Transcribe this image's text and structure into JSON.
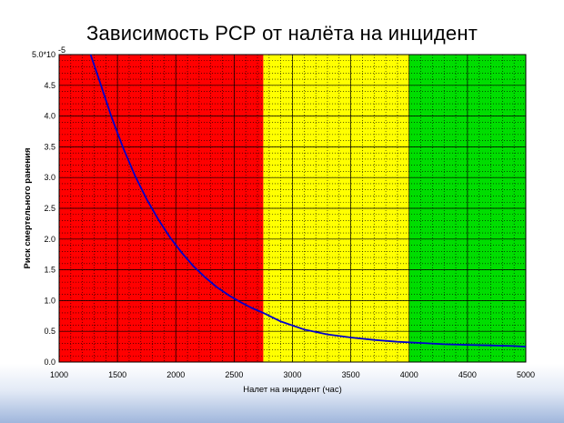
{
  "title": "Зависимость РСР от налёта на инцидент",
  "chart_data": {
    "type": "line",
    "title": "Зависимость РСР от налёта на инцидент",
    "xlabel": "Налет на инцидент (час)",
    "ylabel": "Риск смертельного ранения",
    "y_multiplier_label": "×10⁻⁵",
    "xlim": [
      1000,
      5000
    ],
    "ylim": [
      0.0,
      5.0
    ],
    "x_ticks": [
      1000,
      1500,
      2000,
      2500,
      3000,
      3500,
      4000,
      4500,
      5000
    ],
    "x_tick_labels": [
      "1000",
      "1500",
      "2000",
      "2500",
      "3000",
      "3500",
      "4000",
      "4500",
      "5000"
    ],
    "y_ticks": [
      0.0,
      0.5,
      1.0,
      1.5,
      2.0,
      2.5,
      3.0,
      3.5,
      4.0,
      4.5,
      5.0
    ],
    "y_tick_labels": [
      "0.0",
      "0.5",
      "1.0",
      "1.5",
      "2.0",
      "2.5",
      "3.0",
      "3.5",
      "4.0",
      "4.5",
      "5.0*10"
    ],
    "y_top_exponent": "-5",
    "grid": true,
    "zones": [
      {
        "from": 1000,
        "to": 2750,
        "color": "#ff0000"
      },
      {
        "from": 2750,
        "to": 4000,
        "color": "#ffff00"
      },
      {
        "from": 4000,
        "to": 5000,
        "color": "#00dd00"
      }
    ],
    "series": [
      {
        "color": "#0000cc",
        "x": [
          1270,
          1350,
          1450,
          1550,
          1650,
          1750,
          1850,
          1950,
          2050,
          2150,
          2250,
          2350,
          2450,
          2550,
          2650,
          2750,
          2900,
          3100,
          3300,
          3500,
          3700,
          3900,
          4100,
          4300,
          4500,
          4700,
          4900,
          5000
        ],
        "y": [
          5.0,
          4.55,
          3.98,
          3.48,
          3.03,
          2.65,
          2.32,
          2.03,
          1.78,
          1.56,
          1.38,
          1.22,
          1.09,
          0.98,
          0.88,
          0.8,
          0.66,
          0.53,
          0.45,
          0.4,
          0.36,
          0.33,
          0.31,
          0.29,
          0.28,
          0.27,
          0.26,
          0.25
        ]
      }
    ]
  }
}
